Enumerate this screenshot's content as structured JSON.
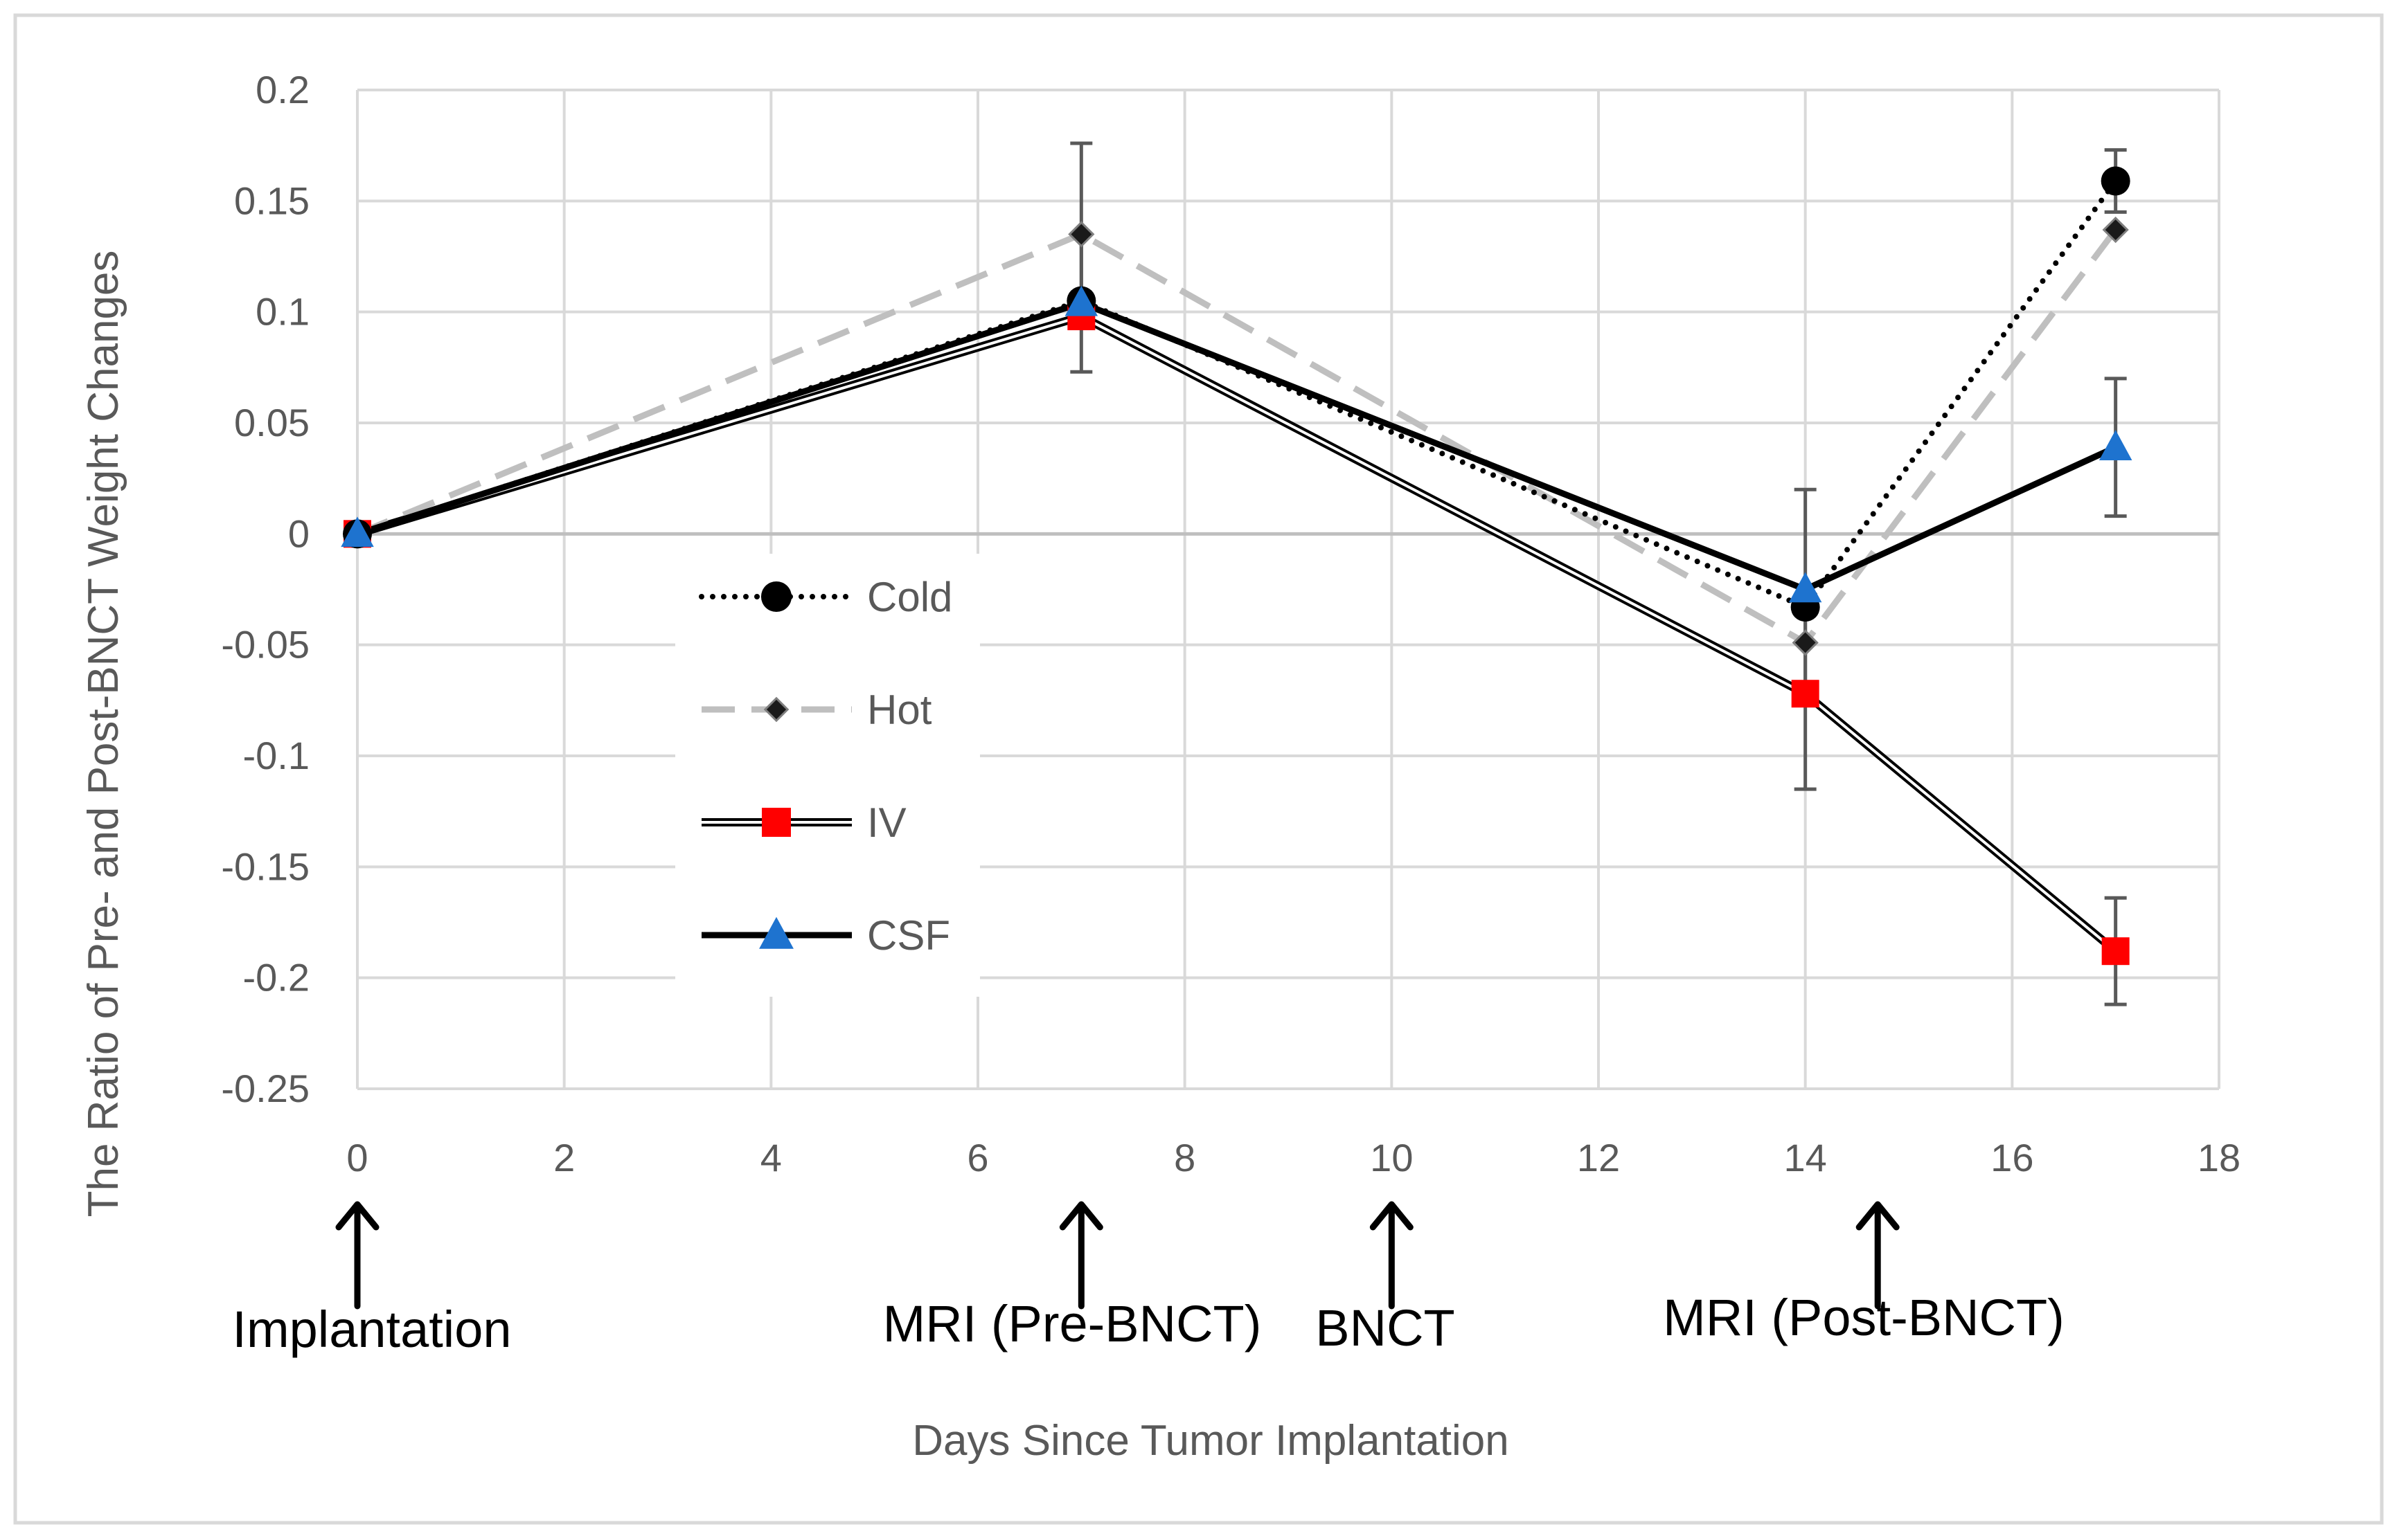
{
  "chart_data": {
    "type": "line",
    "title": "",
    "xlabel": "Days Since Tumor Implantation",
    "ylabel": "The Ratio of Pre- and Post-BNCT Weight Changes",
    "xlim": [
      0,
      18
    ],
    "ylim": [
      -0.25,
      0.2
    ],
    "x_ticks": [
      0,
      2,
      4,
      6,
      8,
      10,
      12,
      14,
      16,
      18
    ],
    "x_tick_labels": [
      "0",
      "2",
      "4",
      "6",
      "8",
      "10",
      "12",
      "14",
      "16",
      "18"
    ],
    "y_ticks": [
      0.2,
      0.15,
      0.1,
      0.05,
      0,
      -0.05,
      -0.1,
      -0.15,
      -0.2,
      -0.25
    ],
    "y_tick_labels": [
      "0.2",
      "0.15",
      "0.1",
      "0.05",
      "0",
      "-0.05",
      "-0.1",
      "-0.15",
      "-0.2",
      "-0.25"
    ],
    "grid": true,
    "legend_position": "center-left",
    "x": [
      0,
      7,
      14,
      17
    ],
    "series": [
      {
        "name": "Cold",
        "values": [
          0,
          0.105,
          -0.033,
          0.159
        ],
        "error": [
          null,
          null,
          null,
          0.014
        ],
        "line_style": "dotted",
        "marker": "circle",
        "color": "#000000",
        "marker_color": "#000000"
      },
      {
        "name": "Hot",
        "values": [
          0,
          0.135,
          -0.049,
          0.137
        ],
        "error": [
          null,
          0.041,
          null,
          null
        ],
        "line_style": "dashed",
        "marker": "diamond",
        "color": "#bfbfbf",
        "marker_color": "#1a1a1a"
      },
      {
        "name": "IV",
        "values": [
          0,
          0.098,
          -0.072,
          -0.188
        ],
        "error": [
          null,
          null,
          0.043,
          0.024
        ],
        "line_style": "double",
        "marker": "square",
        "color": "#000000",
        "marker_color": "#ff0000"
      },
      {
        "name": "CSF",
        "values": [
          0,
          0.104,
          -0.025,
          0.039
        ],
        "error": [
          null,
          0.031,
          0.045,
          0.031
        ],
        "line_style": "solid",
        "marker": "triangle",
        "color": "#000000",
        "marker_color": "#1e73cf"
      }
    ],
    "annotations": [
      {
        "label": "Implantation",
        "day": 0
      },
      {
        "label": "MRI (Pre-BNCT)",
        "day": 7
      },
      {
        "label": "BNCT",
        "day": 10
      },
      {
        "label": "MRI (Post-BNCT)",
        "day": 14.7
      }
    ]
  }
}
